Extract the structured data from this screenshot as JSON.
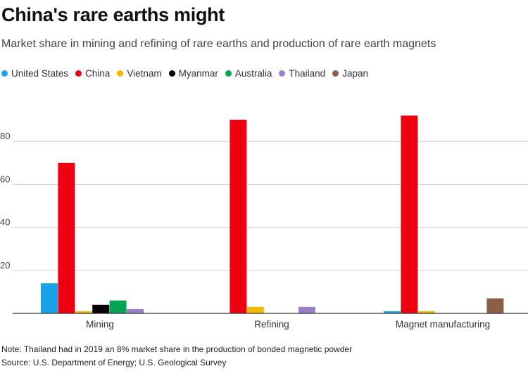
{
  "title": "China's rare earths might",
  "subtitle": "Market share in mining and refining of rare earths and production of rare earth magnets",
  "note": "Note: Thailand had in 2019 an 8% market share in the production of bonded magnetic powder",
  "source": "Source: U.S. Department of Energy; U.S. Geological Survey",
  "chart_data": {
    "type": "bar",
    "title": "China's rare earths might",
    "subtitle": "Market share in mining and refining of rare earths and production of rare earth magnets",
    "xlabel": "",
    "ylabel": "",
    "categories": [
      "Mining",
      "Refining",
      "Magnet manufacturing"
    ],
    "ylim": [
      0,
      100
    ],
    "yticks": [
      20,
      40,
      60,
      80
    ],
    "ytick_labels": [
      "20",
      "40",
      "60",
      "80"
    ],
    "grid": true,
    "legend_position": "top-left",
    "series": [
      {
        "name": "United States",
        "color": "#1aa2e8",
        "values": [
          14,
          0,
          1
        ]
      },
      {
        "name": "China",
        "color": "#ee0010",
        "values": [
          70,
          90,
          92
        ]
      },
      {
        "name": "Vietnam",
        "color": "#f5b800",
        "values": [
          1,
          3,
          1
        ]
      },
      {
        "name": "Myanmar",
        "color": "#000000",
        "values": [
          4,
          0,
          0
        ]
      },
      {
        "name": "Australia",
        "color": "#00a651",
        "values": [
          6,
          0,
          0
        ]
      },
      {
        "name": "Thailand",
        "color": "#9b7fc8",
        "values": [
          2,
          3,
          0
        ]
      },
      {
        "name": "Japan",
        "color": "#8b5e48",
        "values": [
          0,
          0,
          7
        ]
      }
    ]
  }
}
